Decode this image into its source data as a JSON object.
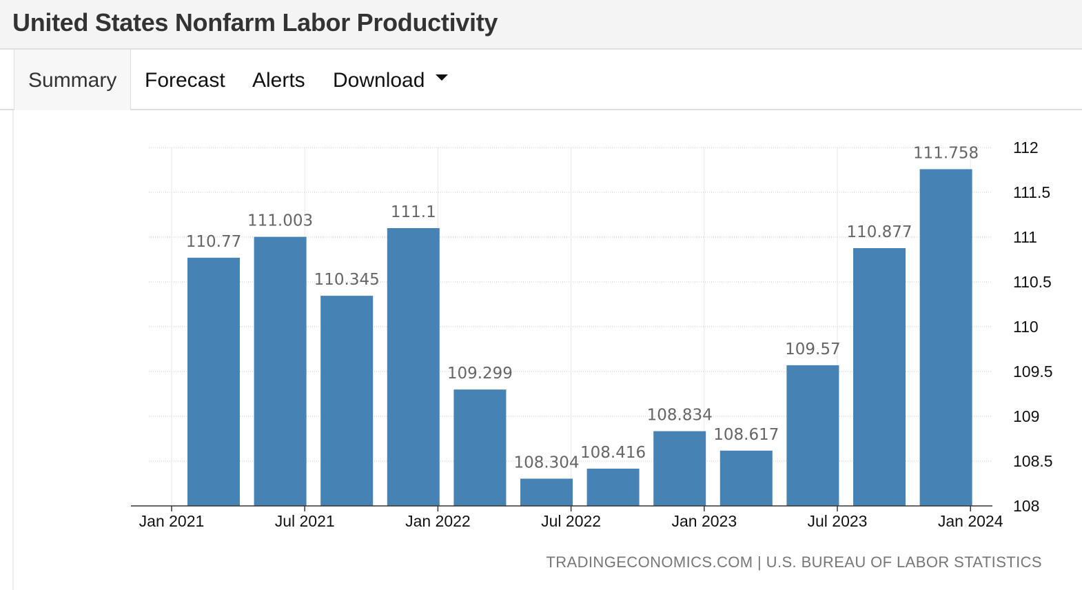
{
  "header": {
    "title": "United States Nonfarm Labor Productivity"
  },
  "tabs": [
    {
      "label": "Summary",
      "active": true
    },
    {
      "label": "Forecast"
    },
    {
      "label": "Alerts"
    },
    {
      "label": "Download",
      "icon": "caret-down-icon"
    }
  ],
  "chart_data": {
    "type": "bar",
    "categories": [
      "2021-Q1",
      "2021-Q2",
      "2021-Q3",
      "2021-Q4",
      "2022-Q1",
      "2022-Q2",
      "2022-Q3",
      "2022-Q4",
      "2023-Q1",
      "2023-Q2",
      "2023-Q3",
      "2023-Q4"
    ],
    "values": [
      110.77,
      111.003,
      110.345,
      111.1,
      109.299,
      108.304,
      108.416,
      108.834,
      108.617,
      109.57,
      110.877,
      111.758
    ],
    "value_labels": [
      "110.77",
      "111.003",
      "110.345",
      "111.1",
      "109.299",
      "108.304",
      "108.416",
      "108.834",
      "108.617",
      "109.57",
      "110.877",
      "111.758"
    ],
    "ylim": [
      108,
      112
    ],
    "yticks": [
      "108",
      "108.5",
      "109",
      "109.5",
      "110",
      "110.5",
      "111",
      "111.5",
      "112"
    ],
    "xticks": [
      "Jan 2021",
      "Jul 2021",
      "Jan 2022",
      "Jul 2022",
      "Jan 2023",
      "Jul 2023",
      "Jan 2024"
    ],
    "y_axis_side": "right",
    "grid": true,
    "bar_color": "#4682b4"
  },
  "source": "TRADINGECONOMICS.COM | U.S. BUREAU OF LABOR STATISTICS"
}
